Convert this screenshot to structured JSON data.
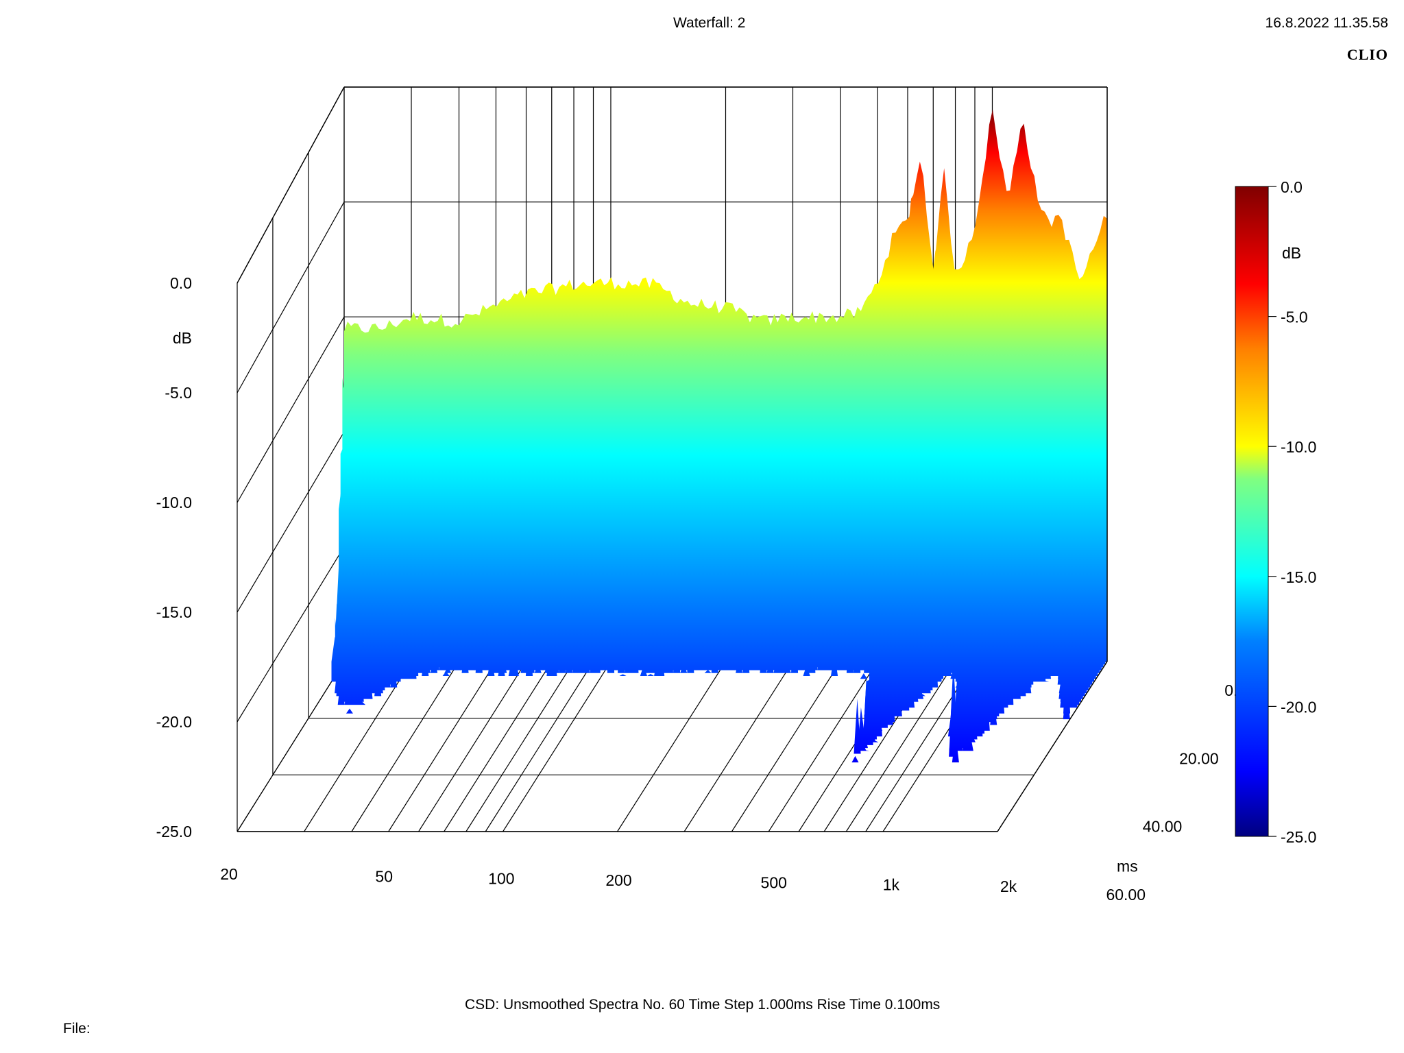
{
  "header": {
    "title": "Waterfall: 2",
    "timestamp": "16.8.2022 11.35.58",
    "brand": "CLIO"
  },
  "footer": {
    "info": "CSD:   Unsmoothed   Spectra No. 60   Time Step 1.000ms   Rise Time 0.100ms",
    "file_label": "File:"
  },
  "chart_data": {
    "type": "waterfall",
    "title": "Waterfall: 2",
    "z_axis": {
      "label": "dB",
      "ticks": [
        "0.0",
        "-5.0",
        "-10.0",
        "-15.0",
        "-20.0",
        "-25.0"
      ],
      "range": [
        -25,
        0
      ]
    },
    "x_axis": {
      "scale": "log",
      "ticks": [
        "20",
        "50",
        "100",
        "200",
        "500",
        "1k",
        "2k"
      ],
      "range": [
        20,
        2000
      ]
    },
    "y_axis": {
      "label": "ms",
      "ticks": [
        "0.00",
        "20.00",
        "40.00",
        "60.00"
      ],
      "range": [
        0,
        60
      ]
    },
    "colorbar": {
      "label": "dB",
      "ticks": [
        "0.0",
        "-5.0",
        "-10.0",
        "-15.0",
        "-20.0",
        "-25.0"
      ],
      "colors": [
        "#800000",
        "#ff0000",
        "#ff8000",
        "#ffff00",
        "#80ff80",
        "#00ffff",
        "#0080ff",
        "#0000ff",
        "#000080"
      ]
    },
    "spectra_count": 60,
    "time_step_ms": 1.0,
    "rise_time_ms": 0.1,
    "smoothing": "Unsmoothed",
    "first_spectrum": {
      "freq_hz": [
        20,
        25,
        30,
        40,
        50,
        60,
        80,
        100,
        130,
        160,
        200,
        250,
        300,
        400,
        450,
        500,
        550,
        600,
        650,
        700,
        750,
        800,
        900,
        1000,
        1100,
        1200,
        1300,
        1400,
        1500,
        1700,
        2000
      ],
      "level_db": [
        -10.5,
        -10.5,
        -10.0,
        -10.2,
        -9.5,
        -9.0,
        -8.6,
        -8.5,
        -8.6,
        -9.4,
        -9.6,
        -10.2,
        -10.0,
        -10.0,
        -9.8,
        -8.5,
        -6.5,
        -5.8,
        -3.0,
        -8.0,
        -3.5,
        -8.5,
        -6.0,
        -1.0,
        -5.0,
        -1.2,
        -4.5,
        -6.0,
        -5.5,
        -8.5,
        -5.5
      ]
    },
    "decay": "broadband ridge decays to about -20 dB within the first ~10 ms, with resonant ridges near 600-700 Hz and 1-1.3 kHz sustaining longer"
  }
}
